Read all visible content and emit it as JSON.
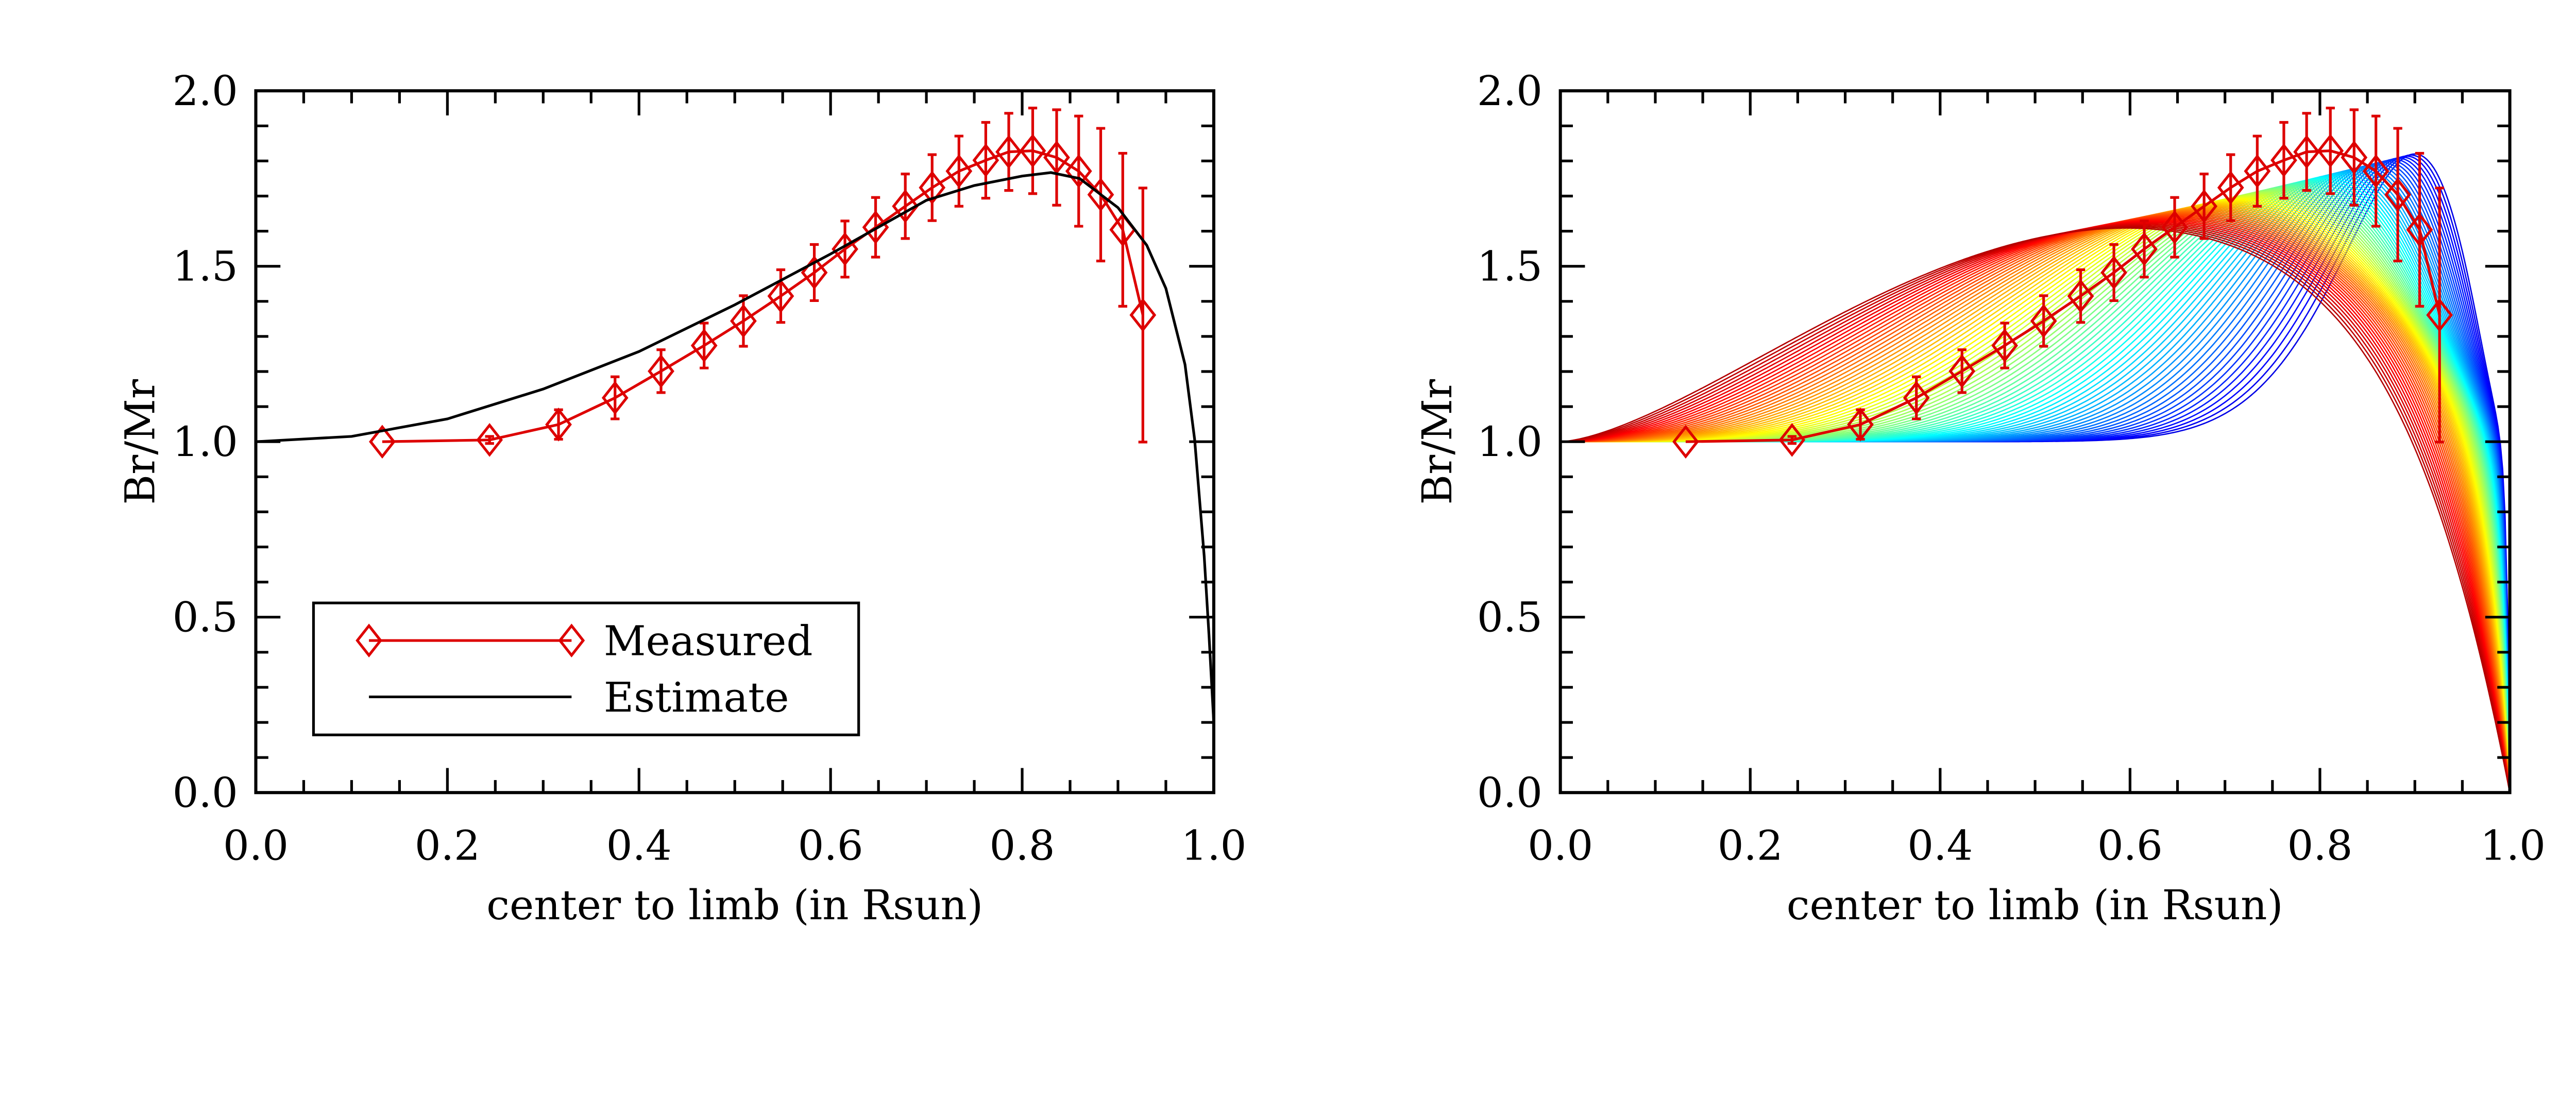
{
  "chart_data": [
    {
      "type": "line",
      "xlabel": "center to limb (in Rsun)",
      "ylabel": "Br/Mr",
      "xlim": [
        0.0,
        1.0
      ],
      "ylim": [
        0.0,
        2.0
      ],
      "xticks": [
        "0.0",
        "0.2",
        "0.4",
        "0.6",
        "0.8",
        "1.0"
      ],
      "yticks": [
        "0.0",
        "0.5",
        "1.0",
        "1.5",
        "2.0"
      ],
      "legend_position": "bottom-left",
      "series": [
        {
          "name": "Measured",
          "color": "#dd0000",
          "marker": "diamond",
          "x": [
            0.132,
            0.244,
            0.316,
            0.375,
            0.423,
            0.468,
            0.509,
            0.548,
            0.583,
            0.615,
            0.647,
            0.678,
            0.706,
            0.734,
            0.762,
            0.786,
            0.811,
            0.836,
            0.859,
            0.882,
            0.905,
            0.926
          ],
          "y": [
            1.0,
            1.005,
            1.049,
            1.125,
            1.201,
            1.274,
            1.344,
            1.415,
            1.482,
            1.549,
            1.611,
            1.671,
            1.724,
            1.771,
            1.802,
            1.826,
            1.829,
            1.81,
            1.771,
            1.704,
            1.604,
            1.361
          ],
          "error": [
            0.0,
            0.01,
            0.042,
            0.06,
            0.061,
            0.064,
            0.072,
            0.075,
            0.08,
            0.08,
            0.085,
            0.092,
            0.094,
            0.1,
            0.108,
            0.11,
            0.122,
            0.136,
            0.157,
            0.189,
            0.218,
            0.362
          ]
        },
        {
          "name": "Estimate",
          "color": "#000000",
          "x": [
            0.0,
            0.1,
            0.2,
            0.3,
            0.4,
            0.5,
            0.6,
            0.7,
            0.75,
            0.8,
            0.83,
            0.86,
            0.9,
            0.93,
            0.95,
            0.97,
            0.98,
            0.99,
            0.995,
            1.0
          ],
          "y": [
            1.0,
            1.015,
            1.065,
            1.15,
            1.257,
            1.39,
            1.535,
            1.688,
            1.73,
            1.757,
            1.767,
            1.75,
            1.667,
            1.56,
            1.437,
            1.22,
            1.007,
            0.674,
            0.45,
            0.2
          ]
        }
      ]
    },
    {
      "type": "line",
      "xlabel": "center to limb (in Rsun)",
      "ylabel": "Br/Mr",
      "xlim": [
        0.0,
        1.0
      ],
      "ylim": [
        0.0,
        2.0
      ],
      "xticks": [
        "0.0",
        "0.2",
        "0.4",
        "0.6",
        "0.8",
        "1.0"
      ],
      "yticks": [
        "0.0",
        "0.5",
        "1.0",
        "1.5",
        "2.0"
      ],
      "model_curves": {
        "count": 70,
        "colormap": "jet (blue to red)"
      },
      "series": [
        {
          "color": "#dd0000",
          "marker": "diamond",
          "x": [
            0.132,
            0.244,
            0.316,
            0.375,
            0.423,
            0.468,
            0.509,
            0.548,
            0.583,
            0.615,
            0.647,
            0.678,
            0.706,
            0.734,
            0.762,
            0.786,
            0.811,
            0.836,
            0.859,
            0.882,
            0.905,
            0.926
          ],
          "y": [
            1.0,
            1.005,
            1.049,
            1.125,
            1.201,
            1.274,
            1.344,
            1.415,
            1.482,
            1.549,
            1.611,
            1.671,
            1.724,
            1.771,
            1.802,
            1.826,
            1.829,
            1.81,
            1.771,
            1.704,
            1.604,
            1.361
          ],
          "error": [
            0.0,
            0.01,
            0.042,
            0.06,
            0.061,
            0.064,
            0.072,
            0.075,
            0.08,
            0.08,
            0.085,
            0.092,
            0.094,
            0.1,
            0.108,
            0.11,
            0.122,
            0.136,
            0.157,
            0.189,
            0.218,
            0.362
          ]
        }
      ]
    }
  ]
}
